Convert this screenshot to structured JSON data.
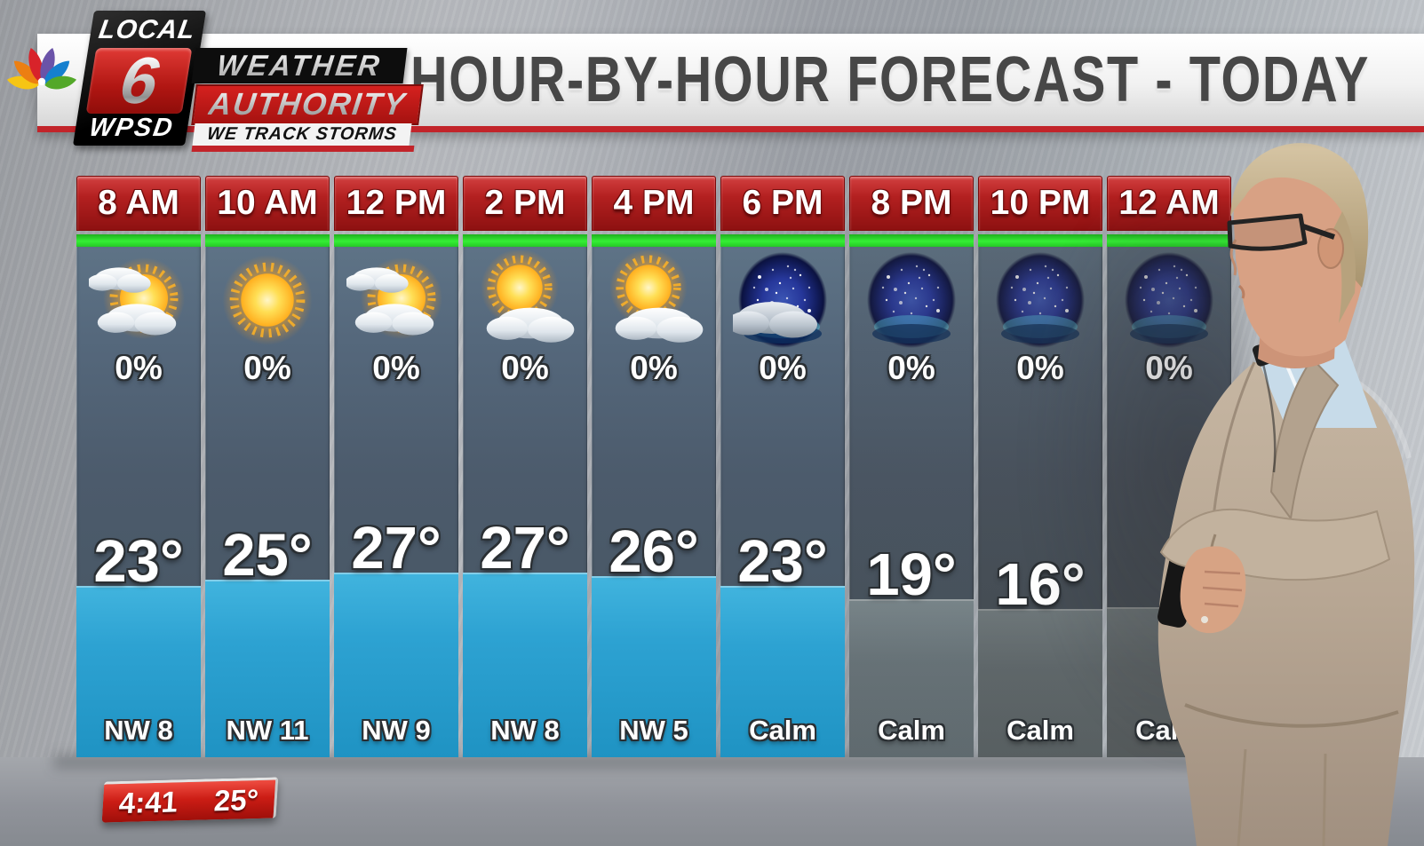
{
  "station": {
    "local": "LOCAL",
    "channel": "6",
    "callsign": "WPSD",
    "weather": "WEATHER",
    "authority": "AUTHORITY",
    "tagline": "WE TRACK STORMS"
  },
  "header": {
    "title": "HOUR-BY-HOUR FORECAST - TODAY"
  },
  "ticker": {
    "time": "4:41",
    "temp": "25°"
  },
  "forecast": {
    "columns": [
      {
        "time": "8 AM",
        "icon": "partly-sunny",
        "precip": "0%",
        "temp": "23°",
        "temp_value": 23,
        "wind": "NW 8"
      },
      {
        "time": "10 AM",
        "icon": "sunny",
        "precip": "0%",
        "temp": "25°",
        "temp_value": 25,
        "wind": "NW 11"
      },
      {
        "time": "12 PM",
        "icon": "partly-sunny",
        "precip": "0%",
        "temp": "27°",
        "temp_value": 27,
        "wind": "NW 9"
      },
      {
        "time": "2 PM",
        "icon": "mostly-sunny",
        "precip": "0%",
        "temp": "27°",
        "temp_value": 27,
        "wind": "NW 8"
      },
      {
        "time": "4 PM",
        "icon": "mostly-sunny",
        "precip": "0%",
        "temp": "26°",
        "temp_value": 26,
        "wind": "NW 5"
      },
      {
        "time": "6 PM",
        "icon": "mostly-cloudy-night",
        "precip": "0%",
        "temp": "23°",
        "temp_value": 23,
        "wind": "Calm"
      },
      {
        "time": "8 PM",
        "icon": "clear-night",
        "precip": "0%",
        "temp": "19°",
        "temp_value": 19,
        "wind": "Calm"
      },
      {
        "time": "10 PM",
        "icon": "clear-night",
        "precip": "0%",
        "temp": "16°",
        "temp_value": 16,
        "wind": "Calm"
      },
      {
        "time": "12 AM",
        "icon": "clear-night",
        "precip": "0%",
        "temp": "",
        "temp_value": null,
        "wind": "Calm"
      }
    ]
  },
  "chart_data": {
    "type": "table",
    "title": "HOUR-BY-HOUR FORECAST - TODAY",
    "categories": [
      "8 AM",
      "10 AM",
      "12 PM",
      "2 PM",
      "4 PM",
      "6 PM",
      "8 PM",
      "10 PM",
      "12 AM"
    ],
    "series": [
      {
        "name": "Sky condition",
        "values": [
          "partly sunny",
          "sunny",
          "partly sunny",
          "mostly sunny",
          "mostly sunny",
          "mostly cloudy night",
          "clear night",
          "clear night",
          "clear night"
        ]
      },
      {
        "name": "Chance of precipitation",
        "values": [
          "0%",
          "0%",
          "0%",
          "0%",
          "0%",
          "0%",
          "0%",
          "0%",
          "0%"
        ]
      },
      {
        "name": "Temperature (°)",
        "values": [
          23,
          25,
          27,
          27,
          26,
          23,
          19,
          16,
          null
        ]
      },
      {
        "name": "Wind",
        "values": [
          "NW 8",
          "NW 11",
          "NW 9",
          "NW 8",
          "NW 5",
          "Calm",
          "Calm",
          "Calm",
          "Calm"
        ]
      }
    ],
    "legend_position": "none",
    "grid": false
  },
  "colors": {
    "header_red": "#b32020",
    "divider_green": "#35ef35",
    "temperature_bar_cyan": "#2da2d2",
    "title_red_underline": "#c2242a",
    "ticker_red": "#cc1d15"
  }
}
